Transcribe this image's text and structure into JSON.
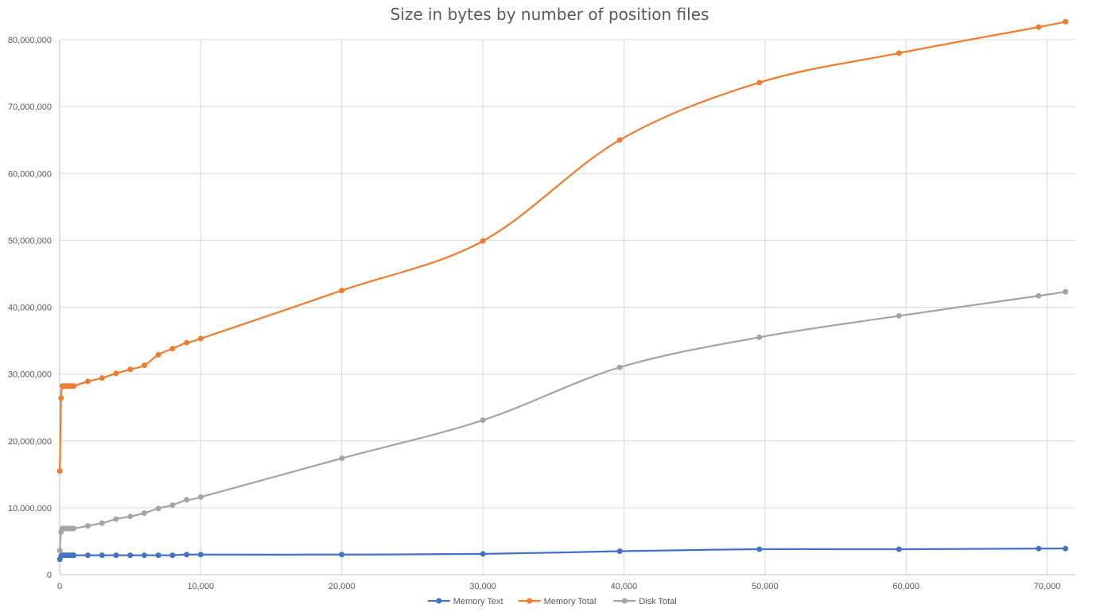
{
  "chart_data": {
    "type": "scatter",
    "title": "Size in bytes by number of position files",
    "xlabel": "",
    "ylabel": "",
    "xlim": [
      0,
      72000
    ],
    "ylim": [
      0,
      80000000
    ],
    "x_ticks": [
      "0",
      "10,000",
      "20,000",
      "30,000",
      "40,000",
      "50,000",
      "60,000",
      "70,000"
    ],
    "y_ticks": [
      "0",
      "10,000,000",
      "20,000,000",
      "30,000,000",
      "40,000,000",
      "50,000,000",
      "60,000,000",
      "70,000,000",
      "80,000,000"
    ],
    "grid": "on",
    "smooth_lines": true,
    "legend_position": "bottom",
    "series": [
      {
        "name": "Memory Text",
        "color": "#4472C4",
        "x": [
          10,
          100,
          200,
          300,
          400,
          500,
          600,
          700,
          800,
          900,
          1000,
          2000,
          3000,
          4000,
          5000,
          6000,
          7000,
          8000,
          9000,
          10000,
          20000,
          30000,
          39700,
          49600,
          59500,
          69400,
          71300
        ],
        "y": [
          2300000,
          2800000,
          2900000,
          2900000,
          2900000,
          2900000,
          2900000,
          2900000,
          2900000,
          2900000,
          2900000,
          2900000,
          2900000,
          2900000,
          2900000,
          2900000,
          2900000,
          2900000,
          3000000,
          3000000,
          3000000,
          3100000,
          3500000,
          3800000,
          3800000,
          3900000,
          3900000
        ]
      },
      {
        "name": "Memory Total",
        "color": "#ED7D31",
        "x": [
          10,
          100,
          200,
          300,
          400,
          500,
          600,
          700,
          800,
          900,
          1000,
          2000,
          3000,
          4000,
          5000,
          6000,
          7000,
          8000,
          9000,
          10000,
          20000,
          30000,
          39700,
          49600,
          59500,
          69400,
          71300
        ],
        "y": [
          15500000,
          26400000,
          28200000,
          28200000,
          28200000,
          28200000,
          28200000,
          28200000,
          28200000,
          28200000,
          28200000,
          28900000,
          29400000,
          30100000,
          30700000,
          31300000,
          32900000,
          33800000,
          34700000,
          35300000,
          42500000,
          49900000,
          65000000,
          73600000,
          78000000,
          81900000,
          82700000
        ]
      },
      {
        "name": "Disk Total",
        "color": "#A5A5A5",
        "x": [
          10,
          100,
          200,
          300,
          400,
          500,
          600,
          700,
          800,
          900,
          1000,
          2000,
          3000,
          4000,
          5000,
          6000,
          7000,
          8000,
          9000,
          10000,
          20000,
          30000,
          39700,
          49600,
          59500,
          69400,
          71300
        ],
        "y": [
          3600000,
          6400000,
          6900000,
          6900000,
          6900000,
          6900000,
          6900000,
          6900000,
          6900000,
          6900000,
          6900000,
          7300000,
          7700000,
          8300000,
          8700000,
          9200000,
          9900000,
          10400000,
          11200000,
          11600000,
          17400000,
          23100000,
          31000000,
          35500000,
          38700000,
          41700000,
          42300000
        ]
      }
    ]
  }
}
